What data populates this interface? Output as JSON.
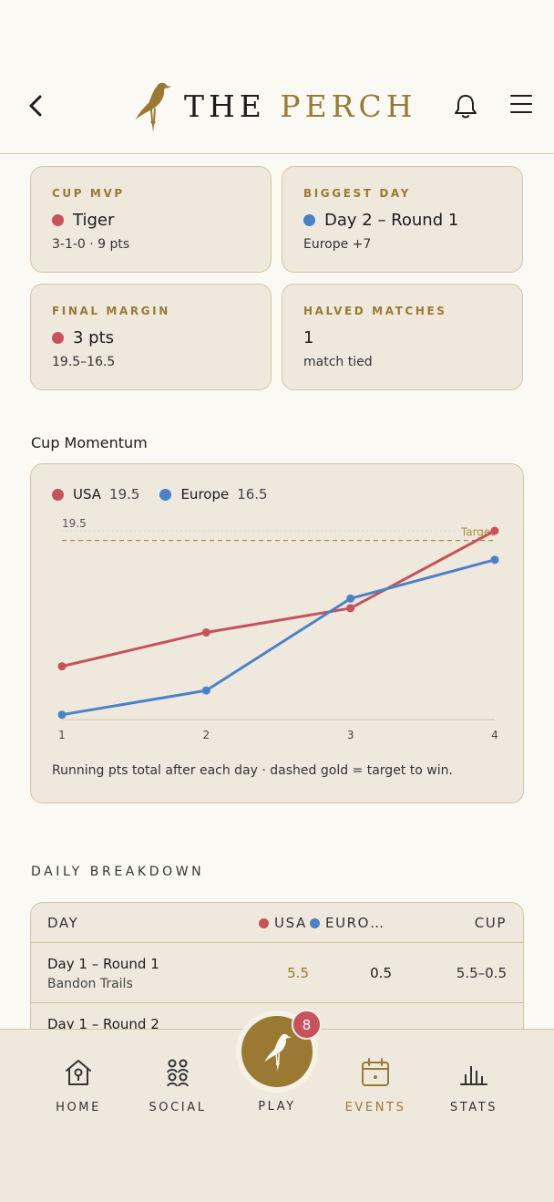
{
  "header": {
    "brand_the": "THE",
    "brand_perch": "PERCH",
    "icons": {
      "back": "chevron-left-icon",
      "bell": "bell-icon",
      "menu": "hamburger-menu-icon",
      "logo": "perched-bird-logo"
    }
  },
  "summary_cards": [
    {
      "label": "CUP MVP",
      "team_color": "red",
      "value": "Tiger",
      "sub": "3-1-0 · 9 pts"
    },
    {
      "label": "BIGGEST DAY",
      "team_color": "blue",
      "value": "Day 2 – Round 1",
      "sub": "Europe +7"
    },
    {
      "label": "FINAL MARGIN",
      "team_color": "red",
      "value": "3 pts",
      "sub": "19.5–16.5"
    },
    {
      "label": "HALVED MATCHES",
      "team_color": "",
      "value": "1",
      "sub": "match tied"
    }
  ],
  "momentum": {
    "title": "Cup Momentum",
    "note": "Running pts total after each day · dashed gold = target to win."
  },
  "chart_data": {
    "type": "line",
    "x": [
      1,
      2,
      3,
      4
    ],
    "series": [
      {
        "name": "USA",
        "total": "19.5",
        "color": "#c7525a",
        "values": [
          5.5,
          9.0,
          11.5,
          19.5
        ]
      },
      {
        "name": "Europe",
        "total": "16.5",
        "color": "#4a82c8",
        "values": [
          0.5,
          3.0,
          12.5,
          16.5
        ]
      }
    ],
    "target": {
      "value": 18.5,
      "label": "Target",
      "color": "#b08a3e"
    },
    "ref_label": "19.5",
    "ylim": [
      0,
      19.5
    ],
    "grid": false,
    "legend": "top-left"
  },
  "daily": {
    "title": "DAILY BREAKDOWN",
    "headers": {
      "day": "DAY",
      "usa": "USA",
      "europe": "EURO…",
      "cup": "CUP"
    },
    "rows": [
      {
        "name": "Day 1 – Round 1",
        "course": "Bandon Trails",
        "usa": "5.5",
        "europe": "0.5",
        "cup": "5.5–0.5"
      },
      {
        "name": "Day 1 – Round 2",
        "course": "",
        "usa": "",
        "europe": "",
        "cup": ""
      }
    ]
  },
  "nav": {
    "items": [
      {
        "label": "HOME",
        "icon": "birdhouse-icon"
      },
      {
        "label": "SOCIAL",
        "icon": "people-icon"
      },
      {
        "label": "EVENTS",
        "icon": "calendar-icon"
      },
      {
        "label": "STATS",
        "icon": "bar-chart-icon"
      }
    ],
    "play": {
      "label": "PLAY",
      "badge": "8"
    },
    "active": "EVENTS"
  },
  "colors": {
    "gold": "#9a7a33",
    "usa_red": "#c7525a",
    "europe_blue": "#4a82c8",
    "card_bg": "#efe9dd",
    "page_bg": "#fbf9f4"
  }
}
